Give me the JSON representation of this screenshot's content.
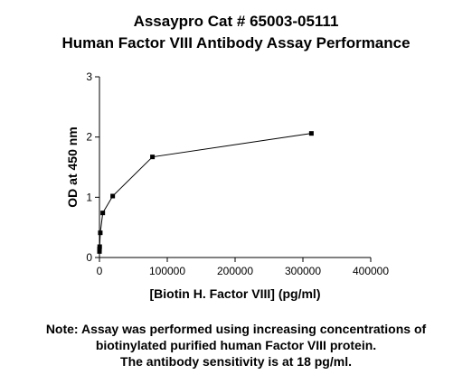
{
  "chart_data": {
    "type": "line",
    "title": "Assaypro Cat # 65003-05111",
    "subtitle": "Human Factor VIII Antibody Assay Performance",
    "x_label": "[Biotin H. Factor VIII] (pg/ml)",
    "y_label": "OD at 450 nm",
    "x": [
      19,
      76,
      305,
      1221,
      4883,
      19531,
      78125,
      312500
    ],
    "values": [
      0.1,
      0.14,
      0.18,
      0.41,
      0.74,
      1.02,
      1.67,
      2.06
    ],
    "color": "#000000",
    "xlim": [
      0,
      400000
    ],
    "xticks": [
      0,
      100000,
      200000,
      300000,
      400000
    ],
    "ylim": [
      0,
      3
    ],
    "yticks": [
      0,
      1,
      2,
      3
    ],
    "grid": false,
    "notes": [
      "Note: Assay was performed using increasing concentrations of",
      "biotinylated purified human Factor VIII protein.",
      "The antibody sensitivity is at 18 pg/ml."
    ]
  }
}
